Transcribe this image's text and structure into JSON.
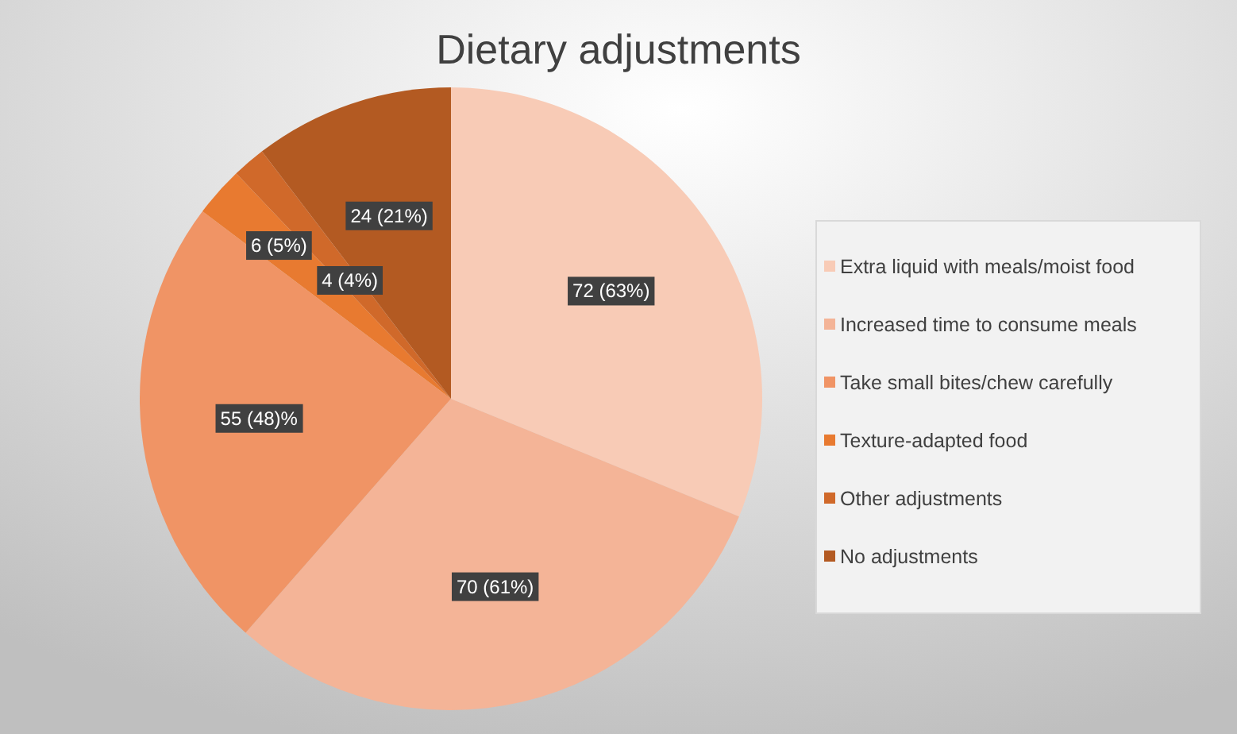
{
  "chart_data": {
    "type": "pie",
    "title": "Dietary adjustments",
    "categories": [
      "Extra liquid with meals/moist food",
      "Increased time to consume meals",
      "Take small bites/chew carefully",
      "Texture-adapted food",
      "Other adjustments",
      "No adjustments"
    ],
    "values": [
      72,
      70,
      55,
      6,
      4,
      24
    ],
    "colors": [
      "#f8cbb6",
      "#f4b497",
      "#f09465",
      "#e87a30",
      "#d0692a",
      "#b35a22"
    ],
    "value_labels": [
      "72 (63%)",
      "70 (61%)",
      "55 (48)%",
      "6 (5%)",
      "4 (4%)",
      "24 (21%)"
    ],
    "legend": "right"
  }
}
